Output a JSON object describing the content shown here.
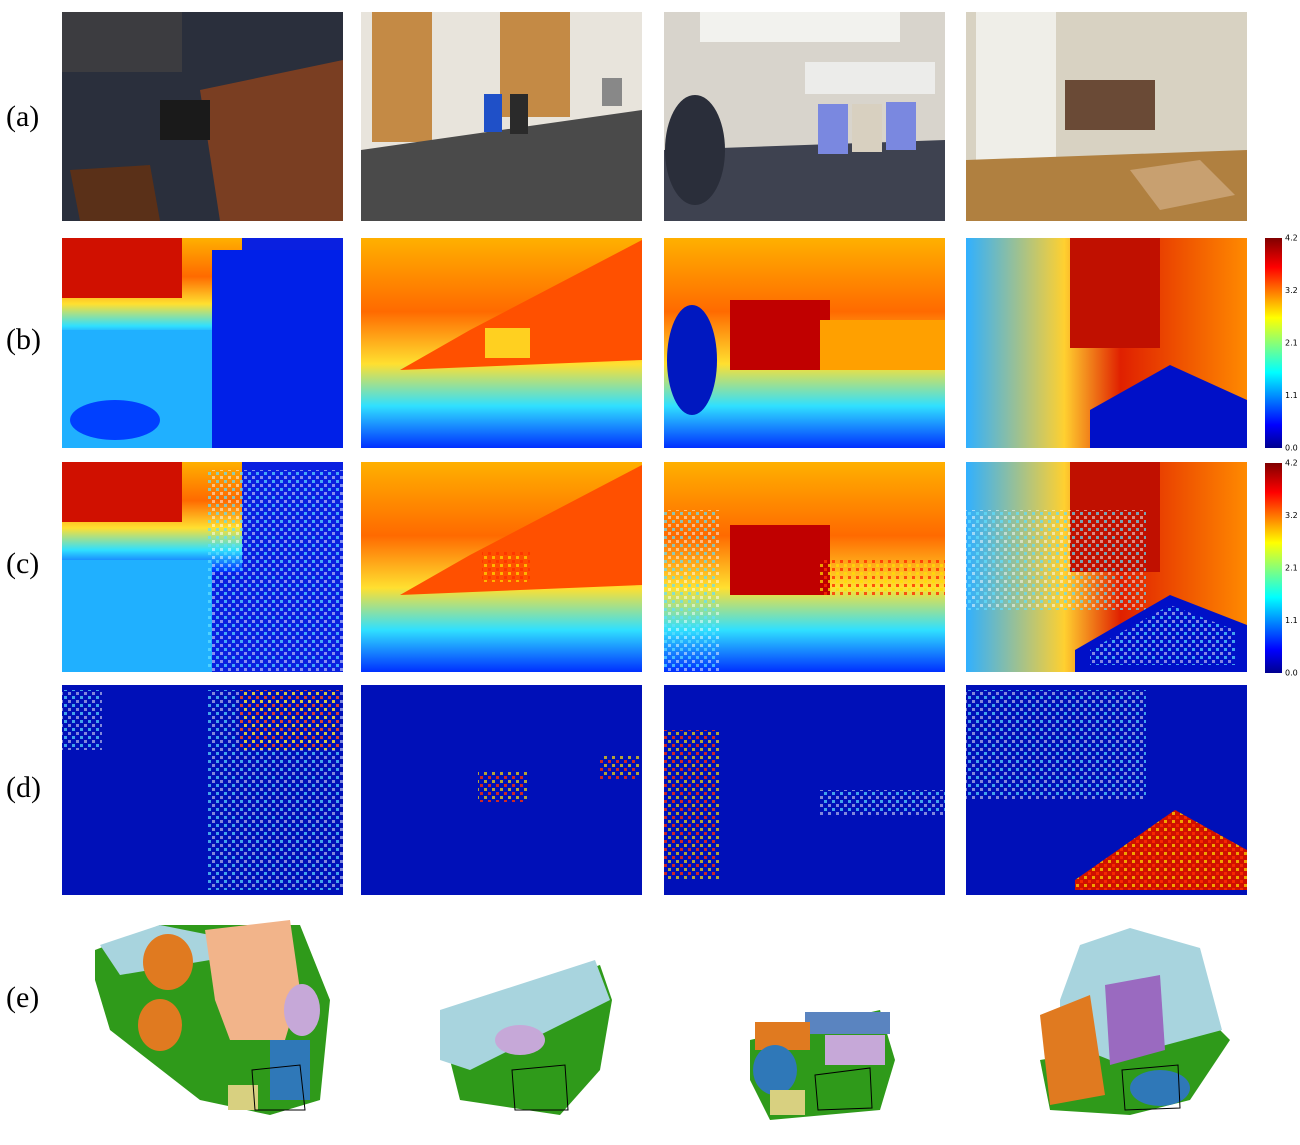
{
  "row_labels": [
    "(a)",
    "(b)",
    "(c)",
    "(d)",
    "(e)"
  ],
  "colorbars": [
    {
      "ticks": [
        "4.2",
        "3.2",
        "2.1",
        "1.1",
        "0.0"
      ]
    },
    {
      "ticks": [
        "4.2",
        "3.2",
        "2.1",
        "1.1",
        "0.0"
      ]
    }
  ]
}
